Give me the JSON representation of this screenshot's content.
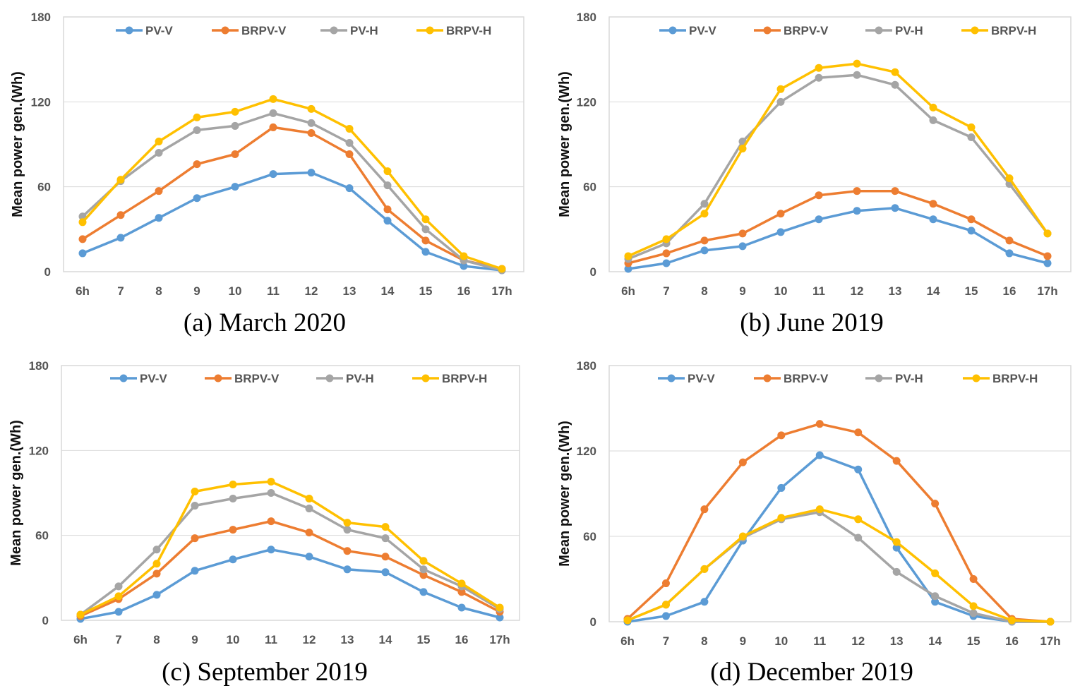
{
  "colors": {
    "PV-V": "#5b9bd5",
    "BRPV-V": "#ed7d31",
    "PV-H": "#a5a5a5",
    "BRPV-H": "#ffc000",
    "grid": "#d9d9d9",
    "frame": "#d9d9d9"
  },
  "chart_data": [
    {
      "type": "line",
      "caption": "(a) March 2020",
      "ylabel": "Mean power gen.(Wh)",
      "ylim": [
        0,
        180
      ],
      "yticks": [
        "0",
        "60",
        "120",
        "180"
      ],
      "categories": [
        "6h",
        "7",
        "8",
        "9",
        "10",
        "11",
        "12",
        "13",
        "14",
        "15",
        "16",
        "17h"
      ],
      "series": [
        {
          "name": "PV-V",
          "values": [
            13,
            24,
            38,
            52,
            60,
            69,
            70,
            59,
            36,
            14,
            4,
            1
          ]
        },
        {
          "name": "BRPV-V",
          "values": [
            23,
            40,
            57,
            76,
            83,
            102,
            98,
            83,
            44,
            22,
            8,
            2
          ]
        },
        {
          "name": "PV-H",
          "values": [
            39,
            64,
            84,
            100,
            103,
            112,
            105,
            91,
            61,
            30,
            8,
            1
          ]
        },
        {
          "name": "BRPV-H",
          "values": [
            35,
            65,
            92,
            109,
            113,
            122,
            115,
            101,
            71,
            37,
            11,
            2
          ]
        }
      ]
    },
    {
      "type": "line",
      "caption": "(b) June 2019",
      "ylabel": "Mean power gen.(Wh)",
      "ylim": [
        0,
        180
      ],
      "yticks": [
        "0",
        "60",
        "120",
        "180"
      ],
      "categories": [
        "6h",
        "7",
        "8",
        "9",
        "10",
        "11",
        "12",
        "13",
        "14",
        "15",
        "16",
        "17h"
      ],
      "series": [
        {
          "name": "PV-V",
          "values": [
            2,
            6,
            15,
            18,
            28,
            37,
            43,
            45,
            37,
            29,
            13,
            6
          ]
        },
        {
          "name": "BRPV-V",
          "values": [
            6,
            13,
            22,
            27,
            41,
            54,
            57,
            57,
            48,
            37,
            22,
            11
          ]
        },
        {
          "name": "PV-H",
          "values": [
            9,
            20,
            48,
            92,
            120,
            137,
            139,
            132,
            107,
            95,
            62,
            27
          ]
        },
        {
          "name": "BRPV-H",
          "values": [
            11,
            23,
            41,
            87,
            129,
            144,
            147,
            141,
            116,
            102,
            66,
            27
          ]
        }
      ]
    },
    {
      "type": "line",
      "caption": "(c) September 2019",
      "ylabel": "Mean power gen.(Wh)",
      "ylim": [
        0,
        180
      ],
      "yticks": [
        "0",
        "60",
        "120",
        "180"
      ],
      "categories": [
        "6h",
        "7",
        "8",
        "9",
        "10",
        "11",
        "12",
        "13",
        "14",
        "15",
        "16",
        "17h"
      ],
      "series": [
        {
          "name": "PV-V",
          "values": [
            1,
            6,
            18,
            35,
            43,
            50,
            45,
            36,
            34,
            20,
            9,
            2
          ]
        },
        {
          "name": "BRPV-V",
          "values": [
            3,
            15,
            33,
            58,
            64,
            70,
            62,
            49,
            45,
            32,
            20,
            6
          ]
        },
        {
          "name": "PV-H",
          "values": [
            4,
            24,
            50,
            81,
            86,
            90,
            79,
            64,
            58,
            36,
            24,
            8
          ]
        },
        {
          "name": "BRPV-H",
          "values": [
            4,
            17,
            40,
            91,
            96,
            98,
            86,
            69,
            66,
            42,
            26,
            9
          ]
        }
      ]
    },
    {
      "type": "line",
      "caption": "(d) December 2019",
      "ylabel": "Mean power gen.(Wh)",
      "ylim": [
        0,
        180
      ],
      "yticks": [
        "0",
        "60",
        "120",
        "180"
      ],
      "categories": [
        "6h",
        "7",
        "8",
        "9",
        "10",
        "11",
        "12",
        "13",
        "14",
        "15",
        "16",
        "17h"
      ],
      "series": [
        {
          "name": "PV-V",
          "values": [
            0,
            4,
            14,
            57,
            94,
            117,
            107,
            52,
            14,
            4,
            0,
            0
          ]
        },
        {
          "name": "BRPV-V",
          "values": [
            2,
            27,
            79,
            112,
            131,
            139,
            133,
            113,
            83,
            30,
            2,
            0
          ]
        },
        {
          "name": "PV-H",
          "values": [
            1,
            12,
            37,
            59,
            72,
            77,
            59,
            35,
            18,
            6,
            0,
            0
          ]
        },
        {
          "name": "BRPV-H",
          "values": [
            1,
            12,
            37,
            60,
            73,
            79,
            72,
            56,
            34,
            11,
            1,
            0
          ]
        }
      ]
    }
  ]
}
